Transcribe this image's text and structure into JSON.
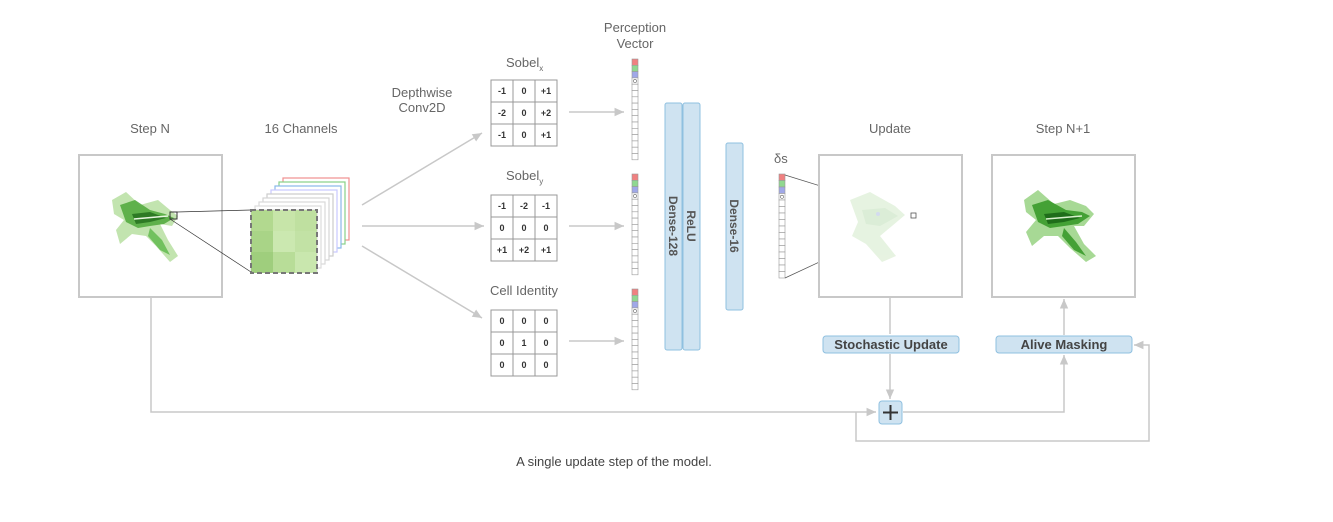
{
  "labels": {
    "step_n": "Step N",
    "channels": "16 Channels",
    "depthwise_line1": "Depthwise",
    "depthwise_line2": "Conv2D",
    "perception_line1": "Perception",
    "perception_line2": "Vector",
    "sobel": "Sobel",
    "sobel_x_sub": "x",
    "sobel_y_sub": "y",
    "cell_identity": "Cell Identity",
    "update": "Update",
    "step_n1": "Step N+1",
    "delta_s": "δs"
  },
  "kernels": {
    "sobel_x": [
      [
        "-1",
        "0",
        "+1"
      ],
      [
        "-2",
        "0",
        "+2"
      ],
      [
        "-1",
        "0",
        "+1"
      ]
    ],
    "sobel_y": [
      [
        "-1",
        "-2",
        "-1"
      ],
      [
        "0",
        "0",
        "0"
      ],
      [
        "+1",
        "+2",
        "+1"
      ]
    ],
    "identity": [
      [
        "0",
        "0",
        "0"
      ],
      [
        "0",
        "1",
        "0"
      ],
      [
        "0",
        "0",
        "0"
      ]
    ]
  },
  "layers": {
    "dense128": "Dense-128",
    "relu": "ReLU",
    "dense16": "Dense-16"
  },
  "buttons": {
    "stochastic_update": "Stochastic Update",
    "alive_masking": "Alive Masking"
  },
  "caption": "A single update step of the model.",
  "colors": {
    "line": "#c8c8c8",
    "layer_fill": "#cfe3f1",
    "layer_stroke": "#8fc0e0",
    "vec_red": "#f08080",
    "vec_green": "#90d890",
    "vec_blue": "#a0a8e8"
  }
}
